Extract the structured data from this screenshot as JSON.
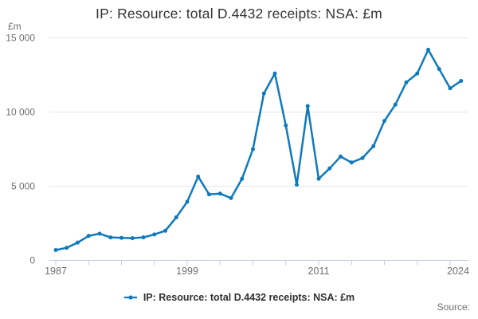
{
  "page": {
    "title": "IP: Resource: total D.4432 receipts: NSA: £m"
  },
  "chart_data": {
    "type": "line",
    "title": "IP: Resource: total D.4432 receipts: NSA: £m",
    "unit_label": "£m",
    "x": [
      1987,
      1988,
      1989,
      1990,
      1991,
      1992,
      1993,
      1994,
      1995,
      1996,
      1997,
      1998,
      1999,
      2000,
      2001,
      2002,
      2003,
      2004,
      2005,
      2006,
      2007,
      2008,
      2009,
      2010,
      2011,
      2012,
      2013,
      2014,
      2015,
      2016,
      2017,
      2018,
      2019,
      2020,
      2021,
      2022,
      2023,
      2024
    ],
    "series": [
      {
        "name": "IP: Resource: total D.4432 receipts: NSA: £m",
        "values": [
          700,
          850,
          1200,
          1650,
          1800,
          1550,
          1520,
          1500,
          1550,
          1750,
          2000,
          2900,
          3950,
          5650,
          4450,
          4500,
          4200,
          5500,
          7500,
          11250,
          12600,
          9100,
          5100,
          10400,
          5500,
          6200,
          7000,
          6600,
          6900,
          7700,
          9400,
          10500,
          12000,
          12600,
          14200,
          12900,
          11600,
          12100
        ]
      }
    ],
    "xlabel": "",
    "ylabel": "£m",
    "ylim": [
      0,
      15000
    ],
    "xlim": [
      1987,
      2024
    ],
    "grid": true,
    "legend_position": "bottom",
    "yticks": [
      {
        "value": 0,
        "label": "0"
      },
      {
        "value": 5000,
        "label": "5 000"
      },
      {
        "value": 10000,
        "label": "10 000"
      },
      {
        "value": 15000,
        "label": "15 000"
      }
    ],
    "xtick_minor_every_years": 3,
    "xtick_labels": [
      {
        "year": 1987,
        "label": "1987"
      },
      {
        "year": 1999,
        "label": "1999"
      },
      {
        "year": 2011,
        "label": "2011"
      },
      {
        "year": 2024,
        "label": "2024"
      }
    ],
    "colors": {
      "line": "#0f79bc",
      "title_text": "#333333",
      "axis_text": "#6e6e6e",
      "gridline": "#e6e6e6",
      "axis_line": "#c3cdd9"
    }
  },
  "legend": {
    "label": "IP: Resource: total D.4432 receipts: NSA: £m"
  },
  "source": {
    "label": "Source:"
  }
}
